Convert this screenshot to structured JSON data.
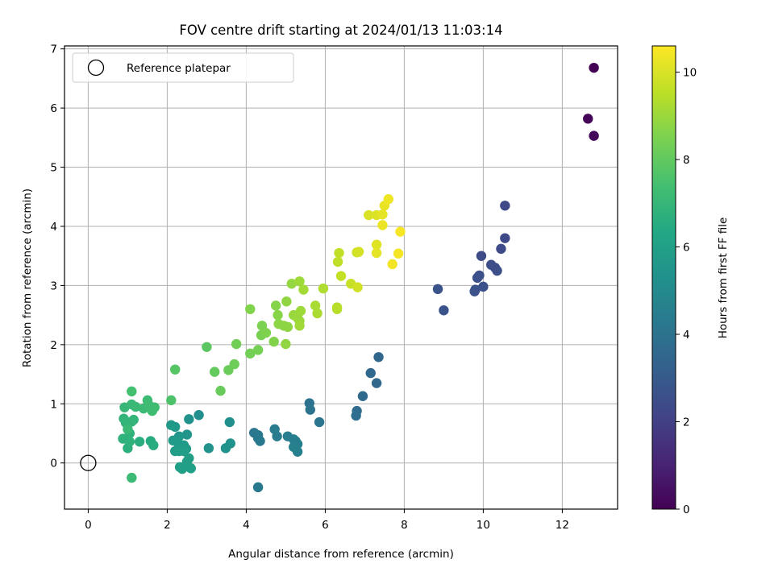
{
  "chart_data": {
    "type": "scatter",
    "title": "FOV centre drift starting at 2024/01/13 11:03:14",
    "xlabel": "Angular distance from reference (arcmin)",
    "ylabel": "Rotation from reference (arcmin)",
    "xlim": [
      -0.6,
      13.4
    ],
    "ylim": [
      -0.78,
      7.05
    ],
    "xticks": [
      0,
      2,
      4,
      6,
      8,
      10,
      12
    ],
    "yticks": [
      0,
      1,
      2,
      3,
      4,
      5,
      6,
      7
    ],
    "grid": true,
    "legend": {
      "placement": "top-left",
      "entries": [
        "Reference platepar"
      ]
    },
    "reference": {
      "x": 0,
      "y": 0
    },
    "colorbar": {
      "label": "Hours from first FF file",
      "min": 0,
      "max": 10.6,
      "ticks": [
        0,
        2,
        4,
        6,
        8,
        10
      ],
      "colormap": "viridis"
    },
    "points": [
      {
        "x": 12.8,
        "y": 6.68,
        "h": 0.02
      },
      {
        "x": 12.65,
        "y": 5.82,
        "h": 0.1
      },
      {
        "x": 12.8,
        "y": 5.53,
        "h": 0.18
      },
      {
        "x": 10.55,
        "y": 4.35,
        "h": 2.3
      },
      {
        "x": 10.55,
        "y": 3.8,
        "h": 2.35
      },
      {
        "x": 10.45,
        "y": 3.62,
        "h": 2.4
      },
      {
        "x": 9.95,
        "y": 3.5,
        "h": 2.45
      },
      {
        "x": 10.2,
        "y": 3.35,
        "h": 2.5
      },
      {
        "x": 10.3,
        "y": 3.3,
        "h": 2.5
      },
      {
        "x": 10.35,
        "y": 3.25,
        "h": 2.55
      },
      {
        "x": 9.9,
        "y": 3.17,
        "h": 2.55
      },
      {
        "x": 9.85,
        "y": 3.13,
        "h": 2.6
      },
      {
        "x": 10.0,
        "y": 2.98,
        "h": 2.6
      },
      {
        "x": 9.8,
        "y": 2.93,
        "h": 2.6
      },
      {
        "x": 9.78,
        "y": 2.9,
        "h": 2.65
      },
      {
        "x": 8.85,
        "y": 2.94,
        "h": 2.7
      },
      {
        "x": 9.0,
        "y": 2.58,
        "h": 2.75
      },
      {
        "x": 7.35,
        "y": 1.79,
        "h": 3.5
      },
      {
        "x": 7.15,
        "y": 1.52,
        "h": 3.55
      },
      {
        "x": 7.3,
        "y": 1.35,
        "h": 3.6
      },
      {
        "x": 6.95,
        "y": 1.13,
        "h": 3.7
      },
      {
        "x": 6.8,
        "y": 0.88,
        "h": 3.75
      },
      {
        "x": 6.78,
        "y": 0.8,
        "h": 3.8
      },
      {
        "x": 5.6,
        "y": 1.01,
        "h": 4.0
      },
      {
        "x": 5.62,
        "y": 0.9,
        "h": 4.05
      },
      {
        "x": 5.85,
        "y": 0.69,
        "h": 4.1
      },
      {
        "x": 4.3,
        "y": -0.41,
        "h": 4.3
      },
      {
        "x": 4.2,
        "y": 0.51,
        "h": 4.2
      },
      {
        "x": 4.3,
        "y": 0.47,
        "h": 4.22
      },
      {
        "x": 4.3,
        "y": 0.42,
        "h": 4.25
      },
      {
        "x": 4.35,
        "y": 0.37,
        "h": 4.3
      },
      {
        "x": 4.72,
        "y": 0.57,
        "h": 4.35
      },
      {
        "x": 4.78,
        "y": 0.45,
        "h": 4.4
      },
      {
        "x": 5.05,
        "y": 0.45,
        "h": 4.45
      },
      {
        "x": 5.2,
        "y": 0.4,
        "h": 4.5
      },
      {
        "x": 5.25,
        "y": 0.37,
        "h": 4.55
      },
      {
        "x": 5.3,
        "y": 0.32,
        "h": 4.55
      },
      {
        "x": 5.2,
        "y": 0.27,
        "h": 4.6
      },
      {
        "x": 5.3,
        "y": 0.19,
        "h": 4.6
      },
      {
        "x": 2.8,
        "y": 0.81,
        "h": 5.2
      },
      {
        "x": 2.55,
        "y": 0.74,
        "h": 5.3
      },
      {
        "x": 3.58,
        "y": 0.69,
        "h": 5.25
      },
      {
        "x": 3.6,
        "y": 0.33,
        "h": 5.35
      },
      {
        "x": 3.48,
        "y": 0.25,
        "h": 5.4
      },
      {
        "x": 3.05,
        "y": 0.25,
        "h": 5.4
      },
      {
        "x": 2.5,
        "y": 0.48,
        "h": 5.5
      },
      {
        "x": 2.3,
        "y": 0.45,
        "h": 5.55
      },
      {
        "x": 2.2,
        "y": 0.61,
        "h": 5.6
      },
      {
        "x": 2.1,
        "y": 0.64,
        "h": 5.65
      },
      {
        "x": 2.15,
        "y": 0.38,
        "h": 5.7
      },
      {
        "x": 2.28,
        "y": 0.33,
        "h": 5.75
      },
      {
        "x": 2.42,
        "y": 0.3,
        "h": 5.75
      },
      {
        "x": 2.48,
        "y": 0.24,
        "h": 5.8
      },
      {
        "x": 2.2,
        "y": 0.2,
        "h": 5.8
      },
      {
        "x": 2.3,
        "y": 0.2,
        "h": 5.85
      },
      {
        "x": 2.42,
        "y": 0.2,
        "h": 5.85
      },
      {
        "x": 2.55,
        "y": 0.08,
        "h": 5.9
      },
      {
        "x": 2.5,
        "y": 0.02,
        "h": 5.9
      },
      {
        "x": 2.38,
        "y": -0.1,
        "h": 5.95
      },
      {
        "x": 2.32,
        "y": -0.07,
        "h": 5.95
      },
      {
        "x": 2.6,
        "y": -0.09,
        "h": 6.0
      },
      {
        "x": 1.58,
        "y": 0.37,
        "h": 6.5
      },
      {
        "x": 1.65,
        "y": 0.3,
        "h": 6.55
      },
      {
        "x": 1.3,
        "y": 0.36,
        "h": 6.6
      },
      {
        "x": 1.0,
        "y": 0.25,
        "h": 6.7
      },
      {
        "x": 1.05,
        "y": 0.5,
        "h": 6.75
      },
      {
        "x": 0.88,
        "y": 0.41,
        "h": 6.8
      },
      {
        "x": 1.05,
        "y": 0.36,
        "h": 6.8
      },
      {
        "x": 0.95,
        "y": 0.68,
        "h": 6.85
      },
      {
        "x": 0.9,
        "y": 0.75,
        "h": 6.9
      },
      {
        "x": 1.1,
        "y": 0.7,
        "h": 6.9
      },
      {
        "x": 1.15,
        "y": 0.73,
        "h": 6.95
      },
      {
        "x": 0.92,
        "y": 0.94,
        "h": 7.0
      },
      {
        "x": 1.1,
        "y": 0.99,
        "h": 7.05
      },
      {
        "x": 1.2,
        "y": 0.95,
        "h": 7.1
      },
      {
        "x": 1.0,
        "y": 0.57,
        "h": 7.1
      },
      {
        "x": 1.1,
        "y": -0.25,
        "h": 7.15
      },
      {
        "x": 1.4,
        "y": 0.92,
        "h": 7.15
      },
      {
        "x": 1.5,
        "y": 1.06,
        "h": 7.2
      },
      {
        "x": 1.55,
        "y": 0.97,
        "h": 7.25
      },
      {
        "x": 1.62,
        "y": 0.88,
        "h": 7.3
      },
      {
        "x": 1.68,
        "y": 0.94,
        "h": 7.3
      },
      {
        "x": 1.1,
        "y": 1.21,
        "h": 7.4
      },
      {
        "x": 2.1,
        "y": 1.06,
        "h": 7.6
      },
      {
        "x": 2.2,
        "y": 1.58,
        "h": 7.75
      },
      {
        "x": 3.0,
        "y": 1.96,
        "h": 7.9
      },
      {
        "x": 3.2,
        "y": 1.54,
        "h": 8.05
      },
      {
        "x": 3.35,
        "y": 1.22,
        "h": 8.15
      },
      {
        "x": 3.55,
        "y": 1.57,
        "h": 8.2
      },
      {
        "x": 3.7,
        "y": 1.67,
        "h": 8.25
      },
      {
        "x": 3.75,
        "y": 2.01,
        "h": 8.3
      },
      {
        "x": 4.1,
        "y": 1.85,
        "h": 8.35
      },
      {
        "x": 4.3,
        "y": 1.91,
        "h": 8.4
      },
      {
        "x": 4.38,
        "y": 2.16,
        "h": 8.45
      },
      {
        "x": 4.4,
        "y": 2.32,
        "h": 8.5
      },
      {
        "x": 4.5,
        "y": 2.2,
        "h": 8.55
      },
      {
        "x": 4.1,
        "y": 2.6,
        "h": 8.6
      },
      {
        "x": 4.7,
        "y": 2.05,
        "h": 8.6
      },
      {
        "x": 4.75,
        "y": 2.66,
        "h": 8.65
      },
      {
        "x": 4.8,
        "y": 2.5,
        "h": 8.7
      },
      {
        "x": 4.82,
        "y": 2.35,
        "h": 8.75
      },
      {
        "x": 4.95,
        "y": 2.32,
        "h": 8.75
      },
      {
        "x": 5.05,
        "y": 2.3,
        "h": 8.8
      },
      {
        "x": 5.0,
        "y": 2.01,
        "h": 8.85
      },
      {
        "x": 5.02,
        "y": 2.73,
        "h": 8.85
      },
      {
        "x": 5.15,
        "y": 3.03,
        "h": 8.9
      },
      {
        "x": 5.2,
        "y": 2.5,
        "h": 8.95
      },
      {
        "x": 5.3,
        "y": 2.45,
        "h": 9.0
      },
      {
        "x": 5.35,
        "y": 2.4,
        "h": 9.0
      },
      {
        "x": 5.35,
        "y": 3.07,
        "h": 9.05
      },
      {
        "x": 5.38,
        "y": 2.57,
        "h": 9.05
      },
      {
        "x": 5.35,
        "y": 2.32,
        "h": 9.1
      },
      {
        "x": 5.45,
        "y": 2.93,
        "h": 9.15
      },
      {
        "x": 5.75,
        "y": 2.66,
        "h": 9.2
      },
      {
        "x": 5.8,
        "y": 2.53,
        "h": 9.25
      },
      {
        "x": 5.95,
        "y": 2.95,
        "h": 9.3
      },
      {
        "x": 6.3,
        "y": 2.63,
        "h": 9.4
      },
      {
        "x": 6.3,
        "y": 2.6,
        "h": 9.45
      },
      {
        "x": 6.32,
        "y": 3.4,
        "h": 9.55
      },
      {
        "x": 6.35,
        "y": 3.55,
        "h": 9.6
      },
      {
        "x": 6.4,
        "y": 3.16,
        "h": 9.65
      },
      {
        "x": 6.65,
        "y": 3.03,
        "h": 9.7
      },
      {
        "x": 6.8,
        "y": 3.56,
        "h": 9.8
      },
      {
        "x": 6.82,
        "y": 2.97,
        "h": 9.85
      },
      {
        "x": 6.85,
        "y": 3.57,
        "h": 9.9
      },
      {
        "x": 7.1,
        "y": 4.19,
        "h": 10.0
      },
      {
        "x": 7.3,
        "y": 4.19,
        "h": 10.05
      },
      {
        "x": 7.3,
        "y": 3.69,
        "h": 10.1
      },
      {
        "x": 7.3,
        "y": 3.55,
        "h": 10.15
      },
      {
        "x": 7.45,
        "y": 4.2,
        "h": 10.2
      },
      {
        "x": 7.5,
        "y": 4.35,
        "h": 10.25
      },
      {
        "x": 7.45,
        "y": 4.02,
        "h": 10.3
      },
      {
        "x": 7.6,
        "y": 4.46,
        "h": 10.35
      },
      {
        "x": 7.7,
        "y": 3.36,
        "h": 10.4
      },
      {
        "x": 7.85,
        "y": 3.54,
        "h": 10.45
      },
      {
        "x": 7.9,
        "y": 3.91,
        "h": 10.5
      }
    ]
  }
}
